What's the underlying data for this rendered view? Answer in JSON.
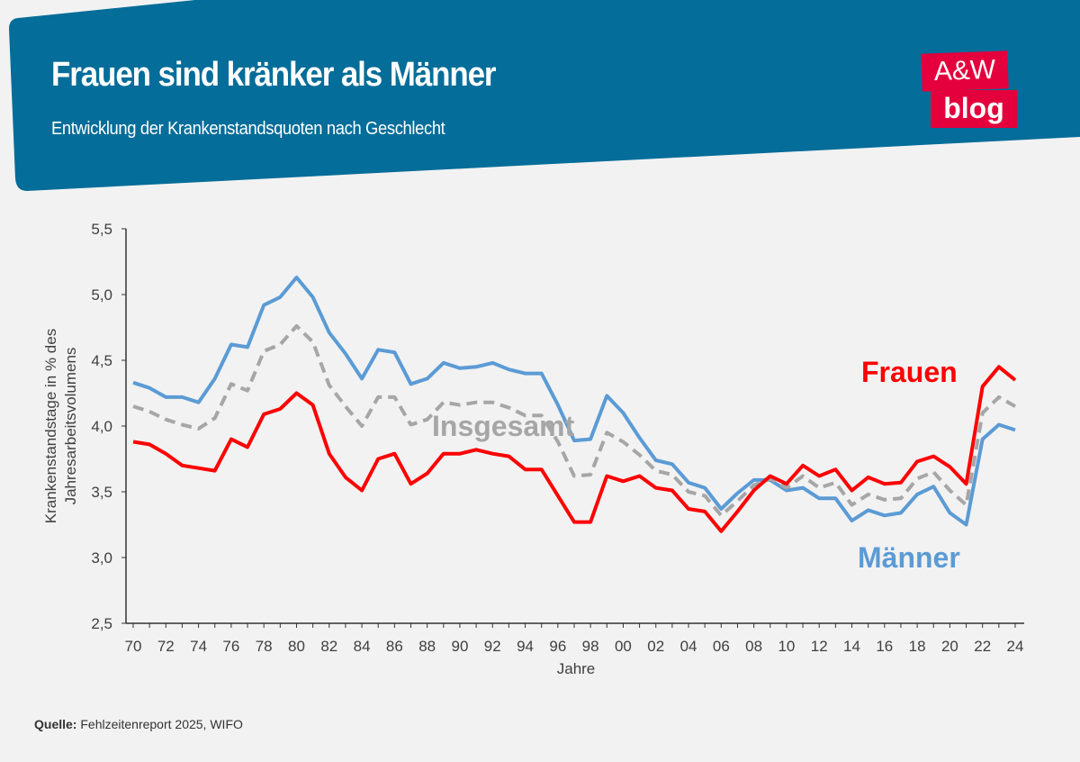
{
  "header": {
    "title": "Frauen sind kränker als Männer",
    "subtitle": "Entwicklung der Krankenstandsquoten nach Geschlecht",
    "logo_line1": "A&W",
    "logo_line2": "blog",
    "banner_color": "#046d99",
    "logo_color": "#e4003c"
  },
  "footer": {
    "source_label": "Quelle:",
    "source_text": "Fehlzeitenreport 2025, WIFO"
  },
  "chart_data": {
    "type": "line",
    "title": "",
    "xlabel": "Jahre",
    "ylabel_lines": [
      "Krankenstandstage in % des",
      "Jahresarbeitsvolumens"
    ],
    "ylim": [
      2.5,
      5.5
    ],
    "yticks": [
      "2,5",
      "3,0",
      "3,5",
      "4,0",
      "4,5",
      "5,0",
      "5,5"
    ],
    "ytick_values": [
      2.5,
      3.0,
      3.5,
      4.0,
      4.5,
      5.0,
      5.5
    ],
    "grid": false,
    "x": [
      "70",
      "71",
      "72",
      "73",
      "74",
      "75",
      "76",
      "77",
      "78",
      "79",
      "80",
      "81",
      "82",
      "83",
      "84",
      "85",
      "86",
      "87",
      "88",
      "89",
      "90",
      "91",
      "92",
      "93",
      "94",
      "95",
      "96",
      "97",
      "98",
      "99",
      "00",
      "01",
      "02",
      "03",
      "04",
      "05",
      "06",
      "07",
      "08",
      "09",
      "10",
      "11",
      "12",
      "13",
      "14",
      "15",
      "16",
      "17",
      "18",
      "19",
      "20",
      "21",
      "22",
      "23",
      "24"
    ],
    "xtick_labels": [
      "70",
      "72",
      "74",
      "76",
      "78",
      "80",
      "82",
      "84",
      "86",
      "88",
      "90",
      "92",
      "94",
      "96",
      "98",
      "00",
      "02",
      "04",
      "06",
      "08",
      "10",
      "12",
      "14",
      "16",
      "18",
      "20",
      "22",
      "24"
    ],
    "series": [
      {
        "name": "Männer",
        "color": "#5b9bd5",
        "style": "solid",
        "values": [
          4.33,
          4.29,
          4.22,
          4.22,
          4.18,
          4.36,
          4.62,
          4.6,
          4.92,
          4.98,
          5.13,
          4.98,
          4.71,
          4.55,
          4.36,
          4.58,
          4.56,
          4.32,
          4.36,
          4.48,
          4.44,
          4.45,
          4.48,
          4.43,
          4.4,
          4.4,
          4.16,
          3.89,
          3.9,
          4.23,
          4.1,
          3.91,
          3.74,
          3.71,
          3.57,
          3.53,
          3.37,
          3.49,
          3.59,
          3.59,
          3.51,
          3.53,
          3.45,
          3.45,
          3.28,
          3.36,
          3.32,
          3.34,
          3.48,
          3.54,
          3.34,
          3.25,
          3.9,
          4.01,
          3.97
        ]
      },
      {
        "name": "Insgesamt",
        "color": "#a6a6a6",
        "style": "dashed",
        "values": [
          4.15,
          4.11,
          4.05,
          4.01,
          3.98,
          4.06,
          4.32,
          4.27,
          4.57,
          4.62,
          4.76,
          4.64,
          4.31,
          4.15,
          4.0,
          4.22,
          4.22,
          4.01,
          4.05,
          4.18,
          4.16,
          4.18,
          4.18,
          4.14,
          4.08,
          4.08,
          3.88,
          3.62,
          3.63,
          3.95,
          3.88,
          3.78,
          3.66,
          3.63,
          3.5,
          3.47,
          3.32,
          3.43,
          3.55,
          3.6,
          3.53,
          3.62,
          3.53,
          3.57,
          3.4,
          3.48,
          3.44,
          3.45,
          3.6,
          3.65,
          3.51,
          3.4,
          4.1,
          4.22,
          4.15
        ]
      },
      {
        "name": "Frauen",
        "color": "#ff0000",
        "style": "solid",
        "values": [
          3.88,
          3.86,
          3.79,
          3.7,
          3.68,
          3.66,
          3.9,
          3.84,
          4.09,
          4.13,
          4.25,
          4.16,
          3.79,
          3.61,
          3.51,
          3.75,
          3.79,
          3.56,
          3.64,
          3.79,
          3.79,
          3.82,
          3.79,
          3.77,
          3.67,
          3.67,
          3.47,
          3.27,
          3.27,
          3.62,
          3.58,
          3.62,
          3.53,
          3.51,
          3.37,
          3.35,
          3.2,
          3.35,
          3.51,
          3.62,
          3.56,
          3.7,
          3.62,
          3.67,
          3.51,
          3.61,
          3.56,
          3.57,
          3.73,
          3.77,
          3.69,
          3.56,
          4.3,
          4.45,
          4.35
        ]
      }
    ]
  }
}
